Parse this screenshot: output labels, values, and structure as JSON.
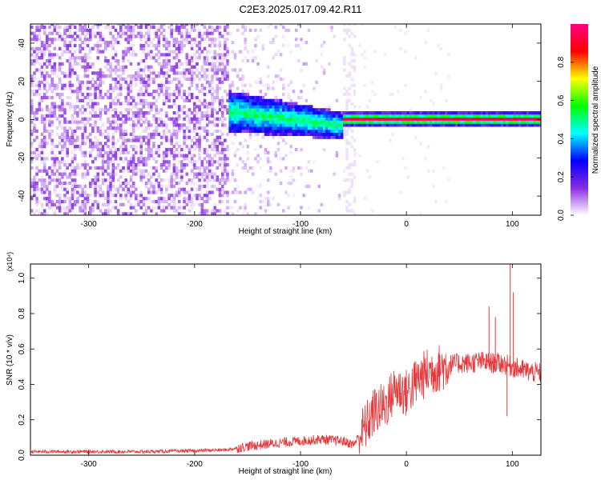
{
  "title": "C2E3.2025.017.09.42.R11",
  "chart_data": [
    {
      "type": "heatmap",
      "xlabel": "Height of straight line (km)",
      "ylabel": "Frequency (Hz)",
      "xlim": [
        -355,
        127
      ],
      "ylim": [
        -50,
        50
      ],
      "xticks": [
        -300,
        -200,
        -100,
        0,
        100
      ],
      "yticks": [
        -40,
        -20,
        0,
        20,
        40
      ],
      "colorbar": {
        "label": "Normalized spectral amplitude",
        "range": [
          0,
          1
        ],
        "ticks": [
          0.0,
          0.2,
          0.4,
          0.6,
          0.8
        ],
        "colormap": [
          "#ffffff",
          "#8a2be2",
          "#0000ff",
          "#00ffff",
          "#00ff00",
          "#ffff00",
          "#ff0000",
          "#ff0080"
        ]
      },
      "features": {
        "noise_region_km": [
          -355,
          -170
        ],
        "broad_band_km": [
          -175,
          -60
        ],
        "narrow_line_km": [
          -60,
          127
        ],
        "line_frequency_hz": 0
      }
    },
    {
      "type": "line",
      "xlabel": "Height of straight line (km)",
      "ylabel": "SNR (10 * v/v)",
      "scale_label": "(x10⁴)",
      "xlim": [
        -355,
        127
      ],
      "ylim": [
        0,
        1.08
      ],
      "xticks": [
        -300,
        -200,
        -100,
        0,
        100
      ],
      "yticks": [
        0.0,
        0.2,
        0.4,
        0.6,
        0.8,
        1.0
      ],
      "color": "#e8373a",
      "series": [
        {
          "x": [
            -355,
            -300,
            -250,
            -200,
            -170,
            -150,
            -120,
            -100,
            -80,
            -60,
            -50,
            -40,
            -30,
            -20,
            -10,
            0,
            10,
            20,
            30,
            40,
            50,
            60,
            70,
            80,
            90,
            100,
            110,
            127
          ],
          "values": [
            0.02,
            0.02,
            0.02,
            0.025,
            0.03,
            0.05,
            0.07,
            0.08,
            0.09,
            0.08,
            0.06,
            0.15,
            0.25,
            0.28,
            0.38,
            0.35,
            0.42,
            0.47,
            0.49,
            0.51,
            0.52,
            0.52,
            0.53,
            0.52,
            0.52,
            0.5,
            0.48,
            0.46
          ]
        }
      ],
      "spikes": [
        {
          "x": 78,
          "y": 0.84
        },
        {
          "x": 84,
          "y": 0.78
        },
        {
          "x": 98,
          "y": 1.08
        },
        {
          "x": 101,
          "y": 0.92
        },
        {
          "x": 95,
          "y": 0.22
        }
      ]
    }
  ]
}
